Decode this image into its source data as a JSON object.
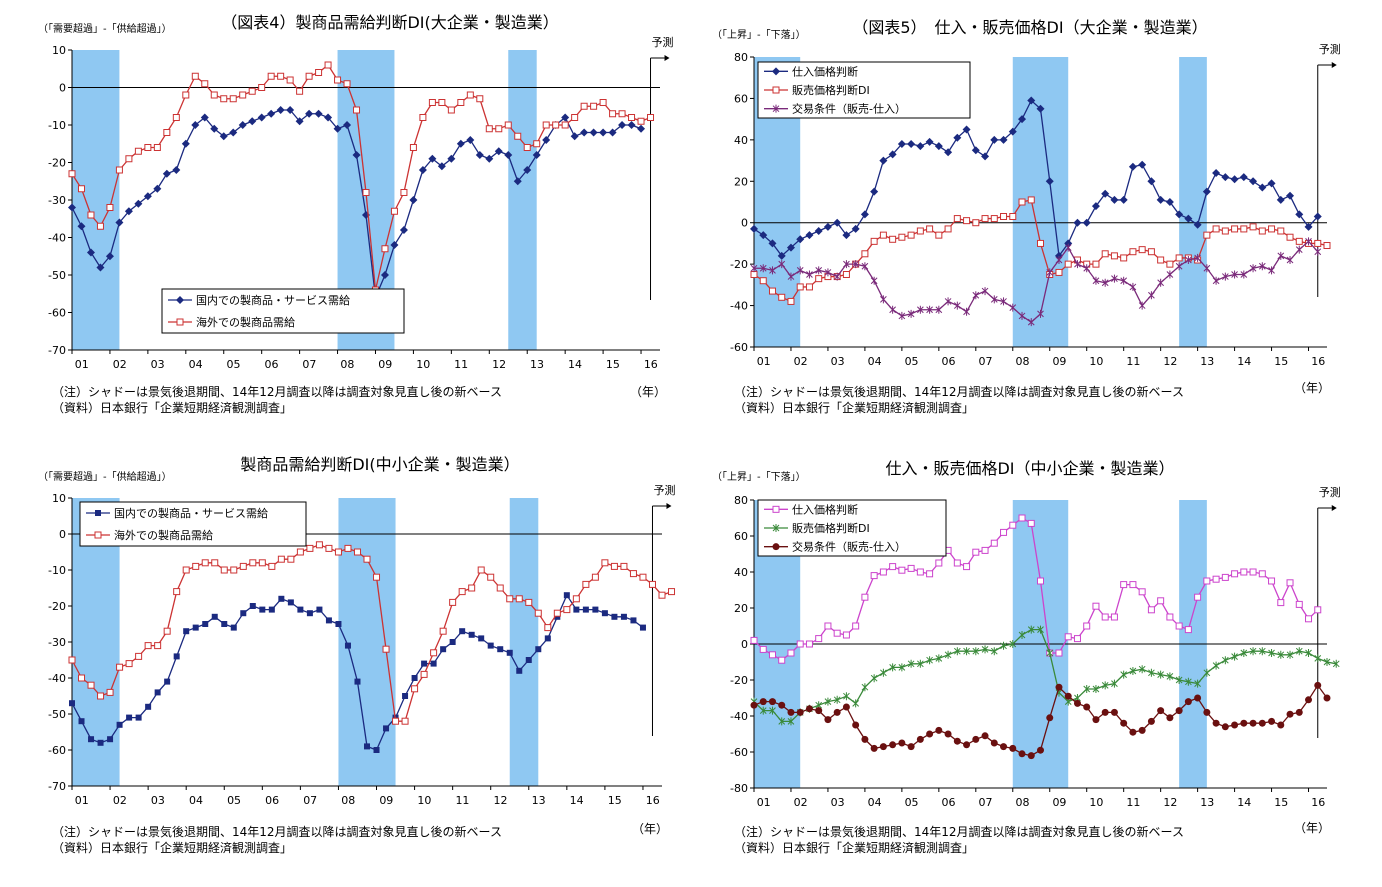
{
  "chart_data": [
    {
      "type": "line",
      "title": "（図表4）製商品需給判断DI(大企業・製造業）",
      "ylabel": "（「需要超過」-「供給超過」）",
      "x_start": 2001.0,
      "x_step": 0.25,
      "xlim": [
        2001,
        2016.5
      ],
      "ylim": [
        -70,
        10
      ],
      "yticks": [
        10,
        0,
        -10,
        -20,
        -30,
        -40,
        -50,
        -60,
        -70
      ],
      "xtick_labels": [
        "01",
        "02",
        "03",
        "04",
        "05",
        "06",
        "07",
        "08",
        "09",
        "10",
        "11",
        "12",
        "13",
        "14",
        "15",
        "16"
      ],
      "xunit": "（年）",
      "forecast_label": "予測",
      "recessions": [
        [
          2001.0,
          2002.25
        ],
        [
          2008.0,
          2009.5
        ],
        [
          2012.5,
          2013.25
        ]
      ],
      "legend_position": "bottom-left",
      "series": [
        {
          "name": "国内での製商品・サービス需給",
          "color": "#1b2a80",
          "marker": "diamond",
          "values": [
            -32,
            -37,
            -44,
            -48,
            -45,
            -36,
            -33,
            -31,
            -29,
            -27,
            -23,
            -22,
            -15,
            -10,
            -8,
            -11,
            -13,
            -12,
            -10,
            -9,
            -8,
            -7,
            -6,
            -6,
            -9,
            -7,
            -7,
            -8,
            -11,
            -10,
            -18,
            -34,
            -56,
            -50,
            -42,
            -38,
            -30,
            -22,
            -19,
            -21,
            -19,
            -15,
            -14,
            -18,
            -19,
            -17,
            -18,
            -25,
            -22,
            -18,
            -14,
            -10,
            -8,
            -13,
            -12,
            -12,
            -12,
            -12,
            -10,
            -10,
            -11
          ]
        },
        {
          "name": "海外での製商品需給",
          "color": "#cc3333",
          "marker": "square",
          "values": [
            -23,
            -27,
            -34,
            -37,
            -32,
            -22,
            -19,
            -17,
            -16,
            -16,
            -12,
            -8,
            -2,
            3,
            1,
            -2,
            -3,
            -3,
            -2,
            -1,
            0,
            3,
            3,
            2,
            -1,
            3,
            4,
            6,
            2,
            1,
            -6,
            -28,
            -54,
            -43,
            -33,
            -28,
            -16,
            -8,
            -4,
            -4,
            -6,
            -4,
            -2,
            -3,
            -11,
            -11,
            -10,
            -13,
            -16,
            -15,
            -10,
            -10,
            -10,
            -8,
            -5,
            -5,
            -4,
            -7,
            -7,
            -8,
            -9,
            -8
          ]
        }
      ]
    },
    {
      "type": "line",
      "title": "（図表5）　仕入・販売価格DI（大企業・製造業）",
      "ylabel": "（「上昇」-「下落」）",
      "x_start": 2001.0,
      "x_step": 0.25,
      "xlim": [
        2001,
        2016.5
      ],
      "ylim": [
        -60,
        80
      ],
      "yticks": [
        80,
        60,
        40,
        20,
        0,
        -20,
        -40,
        -60
      ],
      "xtick_labels": [
        "01",
        "02",
        "03",
        "04",
        "05",
        "06",
        "07",
        "08",
        "09",
        "10",
        "11",
        "12",
        "13",
        "14",
        "15",
        "16"
      ],
      "xunit": "（年）",
      "forecast_label": "予測",
      "recessions": [
        [
          2001.0,
          2002.25
        ],
        [
          2008.0,
          2009.5
        ],
        [
          2012.5,
          2013.25
        ]
      ],
      "legend_position": "top-left",
      "series": [
        {
          "name": "仕入価格判断",
          "color": "#1b2a80",
          "marker": "diamond",
          "values": [
            -3,
            -6,
            -10,
            -16,
            -12,
            -8,
            -6,
            -4,
            -2,
            0,
            -6,
            -3,
            4,
            15,
            30,
            33,
            38,
            38,
            37,
            39,
            37,
            34,
            41,
            45,
            35,
            32,
            40,
            40,
            44,
            50,
            59,
            55,
            20,
            -16,
            -10,
            0,
            0,
            8,
            14,
            11,
            11,
            27,
            28,
            20,
            11,
            10,
            4,
            2,
            -1,
            15,
            24,
            22,
            21,
            22,
            20,
            17,
            19,
            11,
            13,
            4,
            -2,
            3
          ]
        },
        {
          "name": "販売価格判断DI",
          "color": "#cc3333",
          "marker": "square",
          "values": [
            -25,
            -28,
            -33,
            -36,
            -38,
            -31,
            -31,
            -27,
            -26,
            -26,
            -25,
            -20,
            -15,
            -9,
            -6,
            -8,
            -7,
            -6,
            -4,
            -3,
            -6,
            -3,
            2,
            1,
            0,
            2,
            2,
            3,
            3,
            10,
            11,
            -10,
            -25,
            -24,
            -20,
            -18,
            -20,
            -20,
            -15,
            -16,
            -17,
            -14,
            -13,
            -14,
            -18,
            -20,
            -17,
            -17,
            -18,
            -6,
            -3,
            -4,
            -3,
            -3,
            -2,
            -4,
            -3,
            -4,
            -7,
            -9,
            -10,
            -10,
            -11
          ]
        },
        {
          "name": "交易条件（販売-仕入）",
          "color": "#7a2a7a",
          "marker": "x",
          "values": [
            -22,
            -22,
            -23,
            -20,
            -26,
            -23,
            -25,
            -23,
            -24,
            -26,
            -20,
            -20,
            -21,
            -28,
            -37,
            -42,
            -45,
            -44,
            -42,
            -42,
            -42,
            -38,
            -40,
            -43,
            -35,
            -33,
            -37,
            -38,
            -41,
            -45,
            -48,
            -44,
            -24,
            -18,
            -12,
            -20,
            -22,
            -28,
            -29,
            -27,
            -28,
            -31,
            -40,
            -35,
            -29,
            -25,
            -21,
            -18,
            -17,
            -22,
            -28,
            -26,
            -25,
            -25,
            -22,
            -21,
            -23,
            -16,
            -18,
            -13,
            -9,
            -14
          ]
        }
      ]
    },
    {
      "type": "line",
      "title": "製商品需給判断DI(中小企業・製造業）",
      "ylabel": "（「需要超過」-「供給超過」）",
      "x_start": 2001.0,
      "x_step": 0.25,
      "xlim": [
        2001,
        2016.5
      ],
      "ylim": [
        -70,
        10
      ],
      "yticks": [
        10,
        0,
        -10,
        -20,
        -30,
        -40,
        -50,
        -60,
        -70
      ],
      "xtick_labels": [
        "01",
        "02",
        "03",
        "04",
        "05",
        "06",
        "07",
        "08",
        "09",
        "10",
        "11",
        "12",
        "13",
        "14",
        "15",
        "16"
      ],
      "xunit": "（年）",
      "forecast_label": "予測",
      "recessions": [
        [
          2001.0,
          2002.25
        ],
        [
          2008.0,
          2009.5
        ],
        [
          2012.5,
          2013.25
        ]
      ],
      "legend_position": "top-left",
      "series": [
        {
          "name": "国内での製商品・サービス需給",
          "color": "#1b2a80",
          "marker": "square-filled",
          "values": [
            -47,
            -52,
            -57,
            -58,
            -57,
            -53,
            -51,
            -51,
            -48,
            -44,
            -41,
            -34,
            -27,
            -26,
            -25,
            -23,
            -25,
            -26,
            -22,
            -20,
            -21,
            -21,
            -18,
            -19,
            -21,
            -22,
            -21,
            -24,
            -25,
            -31,
            -41,
            -59,
            -60,
            -54,
            -51,
            -45,
            -40,
            -36,
            -36,
            -32,
            -30,
            -27,
            -28,
            -29,
            -31,
            -32,
            -33,
            -38,
            -35,
            -32,
            -29,
            -23,
            -17,
            -21,
            -21,
            -21,
            -22,
            -23,
            -23,
            -24,
            -26
          ]
        },
        {
          "name": "海外での製商品需給",
          "color": "#cc3333",
          "marker": "square",
          "values": [
            -35,
            -40,
            -42,
            -45,
            -44,
            -37,
            -36,
            -34,
            -31,
            -31,
            -27,
            -16,
            -10,
            -9,
            -8,
            -8,
            -10,
            -10,
            -9,
            -8,
            -8,
            -9,
            -7,
            -7,
            -5,
            -4,
            -3,
            -4,
            -5,
            -4,
            -5,
            -7,
            -12,
            -32,
            -52,
            -52,
            -43,
            -39,
            -33,
            -27,
            -19,
            -16,
            -15,
            -10,
            -12,
            -15,
            -18,
            -18,
            -19,
            -22,
            -26,
            -22,
            -21,
            -18,
            -14,
            -12,
            -8,
            -9,
            -9,
            -11,
            -12,
            -14,
            -17,
            -16
          ]
        }
      ]
    },
    {
      "type": "line",
      "title": "仕入・販売価格DI（中小企業・製造業）",
      "ylabel": "（「上昇」-「下落」）",
      "x_start": 2001.0,
      "x_step": 0.25,
      "xlim": [
        2001,
        2016.5
      ],
      "ylim": [
        -80,
        80
      ],
      "yticks": [
        80,
        60,
        40,
        20,
        0,
        -20,
        -40,
        -60,
        -80
      ],
      "xtick_labels": [
        "01",
        "02",
        "03",
        "04",
        "05",
        "06",
        "07",
        "08",
        "09",
        "10",
        "11",
        "12",
        "13",
        "14",
        "15",
        "16"
      ],
      "xunit": "（年）",
      "forecast_label": "予測",
      "recessions": [
        [
          2001.0,
          2002.25
        ],
        [
          2008.0,
          2009.5
        ],
        [
          2012.5,
          2013.25
        ]
      ],
      "legend_position": "top-left",
      "series": [
        {
          "name": "仕入価格判断",
          "color": "#cc44cc",
          "marker": "square",
          "values": [
            2,
            -3,
            -6,
            -9,
            -5,
            0,
            0,
            3,
            10,
            6,
            5,
            10,
            26,
            38,
            40,
            43,
            41,
            42,
            40,
            39,
            45,
            52,
            45,
            43,
            51,
            52,
            56,
            62,
            66,
            70,
            67,
            35,
            -5,
            -5,
            4,
            3,
            10,
            21,
            15,
            15,
            33,
            33,
            29,
            19,
            24,
            15,
            10,
            8,
            26,
            35,
            36,
            37,
            39,
            40,
            40,
            39,
            35,
            23,
            34,
            22,
            14,
            19
          ]
        },
        {
          "name": "販売価格判断DI",
          "color": "#3a8a3a",
          "marker": "x",
          "values": [
            -32,
            -37,
            -37,
            -43,
            -43,
            -38,
            -36,
            -34,
            -32,
            -31,
            -29,
            -33,
            -24,
            -19,
            -16,
            -13,
            -13,
            -11,
            -11,
            -9,
            -8,
            -6,
            -4,
            -4,
            -4,
            -3,
            -4,
            -1,
            0,
            5,
            8,
            8,
            -5,
            -27,
            -32,
            -30,
            -25,
            -25,
            -23,
            -22,
            -17,
            -15,
            -14,
            -16,
            -17,
            -18,
            -20,
            -21,
            -22,
            -16,
            -12,
            -9,
            -7,
            -5,
            -4,
            -4,
            -5,
            -6,
            -6,
            -4,
            -5,
            -8,
            -10,
            -11
          ]
        },
        {
          "name": "交易条件（販売-仕入）",
          "color": "#6a1010",
          "marker": "circle",
          "values": [
            -34,
            -32,
            -32,
            -34,
            -38,
            -38,
            -36,
            -37,
            -42,
            -38,
            -35,
            -45,
            -53,
            -58,
            -57,
            -56,
            -55,
            -57,
            -53,
            -50,
            -48,
            -50,
            -54,
            -56,
            -53,
            -51,
            -55,
            -57,
            -58,
            -61,
            -62,
            -59,
            -41,
            -24,
            -29,
            -33,
            -35,
            -42,
            -38,
            -38,
            -44,
            -49,
            -48,
            -43,
            -37,
            -41,
            -37,
            -32,
            -30,
            -38,
            -44,
            -46,
            -45,
            -44,
            -44,
            -44,
            -43,
            -45,
            -39,
            -38,
            -31,
            -23,
            -30
          ]
        }
      ]
    }
  ],
  "notes": {
    "note_line": "（注）シャドーは景気後退期間、14年12月調査以降は調査対象見直し後の新ベース",
    "source_line": "（資料）日本銀行「企業短期経済観測調査」"
  }
}
